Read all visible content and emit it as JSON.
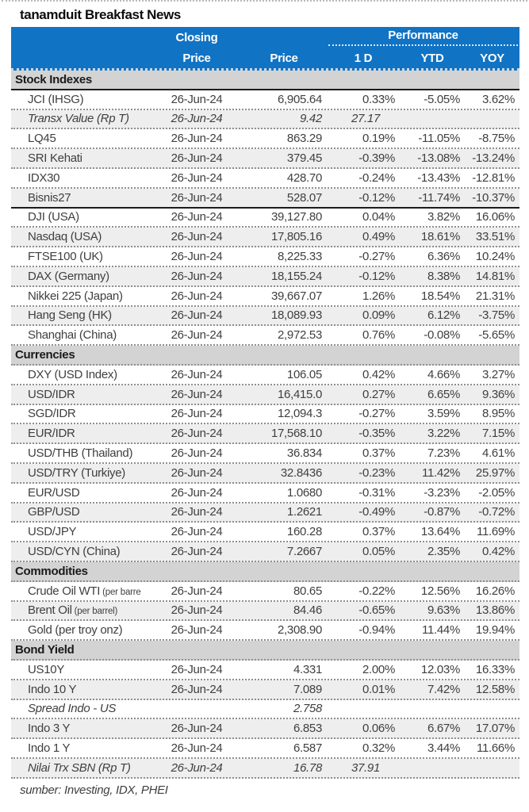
{
  "title": "tanamduit Breakfast News",
  "source_note": "sumber: Investing, IDX, PHEI",
  "colors": {
    "header_blue": "#1173C4",
    "section_gray": "#D3D3D3",
    "zebra_gray": "#EEEEEE",
    "divider_dark": "#1c1c1c"
  },
  "header": {
    "closing_label": "Closing",
    "closing_sub": "Price",
    "price_label": "Price",
    "performance_label": "Performance",
    "perf_cols": [
      "1 D",
      "YTD",
      "YOY"
    ]
  },
  "sections": [
    {
      "label": "Stock Indexes",
      "thick_bottom": true,
      "rows": [
        {
          "name": "JCI (IHSG)",
          "date": "26-Jun-24",
          "price": "6,905.64",
          "d1": "0.33%",
          "ytd": "-5.05%",
          "yoy": "3.62%"
        },
        {
          "name": "Transx Value (Rp T)",
          "italic": true,
          "date": "26-Jun-24",
          "price": "9.42",
          "d1": "27.17",
          "d1_no_pct": true,
          "ytd": "",
          "yoy": ""
        },
        {
          "name": "LQ45",
          "date": "26-Jun-24",
          "price": "863.29",
          "d1": "0.19%",
          "ytd": "-11.05%",
          "yoy": "-8.75%"
        },
        {
          "name": "SRI Kehati",
          "date": "26-Jun-24",
          "price": "379.45",
          "d1": "-0.39%",
          "ytd": "-13.08%",
          "yoy": "-13.24%"
        },
        {
          "name": "IDX30",
          "date": "26-Jun-24",
          "price": "428.70",
          "d1": "-0.24%",
          "ytd": "-13.43%",
          "yoy": "-12.81%"
        },
        {
          "name": "Bisnis27",
          "date": "26-Jun-24",
          "price": "528.07",
          "d1": "-0.12%",
          "ytd": "-11.74%",
          "yoy": "-10.37%",
          "divider_after": true
        },
        {
          "name": "DJI (USA)",
          "date": "26-Jun-24",
          "price": "39,127.80",
          "d1": "0.04%",
          "ytd": "3.82%",
          "yoy": "16.06%"
        },
        {
          "name": "Nasdaq (USA)",
          "date": "26-Jun-24",
          "price": "17,805.16",
          "d1": "0.49%",
          "ytd": "18.61%",
          "yoy": "33.51%"
        },
        {
          "name": "FTSE100 (UK)",
          "date": "26-Jun-24",
          "price": "8,225.33",
          "d1": "-0.27%",
          "ytd": "6.36%",
          "yoy": "10.24%"
        },
        {
          "name": "DAX (Germany)",
          "date": "26-Jun-24",
          "price": "18,155.24",
          "d1": "-0.12%",
          "ytd": "8.38%",
          "yoy": "14.81%"
        },
        {
          "name": "Nikkei 225 (Japan)",
          "date": "26-Jun-24",
          "price": "39,667.07",
          "d1": "1.26%",
          "ytd": "18.54%",
          "yoy": "21.31%"
        },
        {
          "name": "Hang Seng (HK)",
          "date": "26-Jun-24",
          "price": "18,089.93",
          "d1": "0.09%",
          "ytd": "6.12%",
          "yoy": "-3.75%"
        },
        {
          "name": "Shanghai (China)",
          "date": "26-Jun-24",
          "price": "2,972.53",
          "d1": "0.76%",
          "ytd": "-0.08%",
          "yoy": "-5.65%"
        }
      ]
    },
    {
      "label": "Currencies",
      "rows": [
        {
          "name": "DXY (USD Index)",
          "date": "26-Jun-24",
          "price": "106.05",
          "d1": "0.42%",
          "ytd": "4.66%",
          "yoy": "3.27%"
        },
        {
          "name": "USD/IDR",
          "date": "26-Jun-24",
          "price": "16,415.0",
          "d1": "0.27%",
          "ytd": "6.65%",
          "yoy": "9.36%"
        },
        {
          "name": "SGD/IDR",
          "date": "26-Jun-24",
          "price": "12,094.3",
          "d1": "-0.27%",
          "ytd": "3.59%",
          "yoy": "8.95%"
        },
        {
          "name": "EUR/IDR",
          "date": "26-Jun-24",
          "price": "17,568.10",
          "d1": "-0.35%",
          "ytd": "3.22%",
          "yoy": "7.15%"
        },
        {
          "name": "USD/THB (Thailand)",
          "date": "26-Jun-24",
          "price": "36.834",
          "d1": "0.37%",
          "ytd": "7.23%",
          "yoy": "4.61%"
        },
        {
          "name": "USD/TRY (Turkiye)",
          "date": "26-Jun-24",
          "price": "32.8436",
          "d1": "-0.23%",
          "ytd": "11.42%",
          "yoy": "25.97%"
        },
        {
          "name": "EUR/USD",
          "date": "26-Jun-24",
          "price": "1.0680",
          "d1": "-0.31%",
          "ytd": "-3.23%",
          "yoy": "-2.05%"
        },
        {
          "name": "GBP/USD",
          "date": "26-Jun-24",
          "price": "1.2621",
          "d1": "-0.49%",
          "ytd": "-0.87%",
          "yoy": "-0.72%"
        },
        {
          "name": "USD/JPY",
          "date": "26-Jun-24",
          "price": "160.28",
          "d1": "0.37%",
          "ytd": "13.64%",
          "yoy": "11.69%"
        },
        {
          "name": "USD/CYN (China)",
          "date": "26-Jun-24",
          "price": "7.2667",
          "d1": "0.05%",
          "ytd": "2.35%",
          "yoy": "0.42%"
        }
      ]
    },
    {
      "label": "Commodities",
      "rows": [
        {
          "name": "Crude Oil WTI",
          "name_small": " (per barre",
          "date": "26-Jun-24",
          "price": "80.65",
          "d1": "-0.22%",
          "ytd": "12.56%",
          "yoy": "16.26%"
        },
        {
          "name": "Brent Oil",
          "name_small": " (per barrel)",
          "date": "26-Jun-24",
          "price": "84.46",
          "d1": "-0.65%",
          "ytd": "9.63%",
          "yoy": "13.86%"
        },
        {
          "name": "Gold (per troy onz)",
          "date": "26-Jun-24",
          "price": "2,308.90",
          "d1": "-0.94%",
          "ytd": "11.44%",
          "yoy": "19.94%"
        }
      ]
    },
    {
      "label": "Bond Yield",
      "rows": [
        {
          "name": "US10Y",
          "date": "26-Jun-24",
          "price": "4.331",
          "d1": "2.00%",
          "ytd": "12.03%",
          "yoy": "16.33%"
        },
        {
          "name": "Indo 10 Y",
          "date": "26-Jun-24",
          "price": "7.089",
          "d1": "0.01%",
          "ytd": "7.42%",
          "yoy": "12.58%"
        },
        {
          "name": "Spread Indo - US",
          "italic": true,
          "date": "",
          "price": "2.758",
          "d1": "",
          "ytd": "",
          "yoy": ""
        },
        {
          "name": "Indo 3 Y",
          "date": "26-Jun-24",
          "price": "6.853",
          "d1": "0.06%",
          "ytd": "6.67%",
          "yoy": "17.07%"
        },
        {
          "name": "Indo 1 Y",
          "date": "26-Jun-24",
          "price": "6.587",
          "d1": "0.32%",
          "ytd": "3.44%",
          "yoy": "11.66%"
        },
        {
          "name": "Nilai Trx SBN (Rp T)",
          "italic": true,
          "date": "26-Jun-24",
          "price": "16.78",
          "d1": "37.91",
          "d1_no_pct": true,
          "ytd": "",
          "yoy": ""
        }
      ]
    }
  ]
}
